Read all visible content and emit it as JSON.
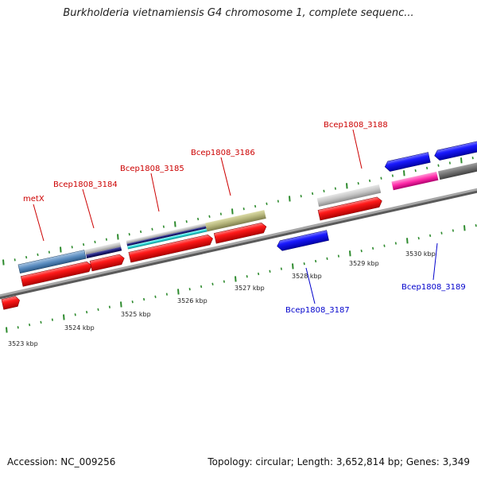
{
  "title": "Burkholderia vietnamiensis G4 chromosome 1, complete sequenc...",
  "colors": {
    "background": "#ffffff",
    "backbone": "#8a8a8a",
    "tick": "#2e8b2e",
    "label_forward": "#cc0000",
    "label_reverse": "#0000cc"
  },
  "scale": {
    "unit": "kbp",
    "labels": [
      {
        "text": "3523 kbp"
      },
      {
        "text": "3524 kbp"
      },
      {
        "text": "3525 kbp"
      },
      {
        "text": "3526 kbp"
      },
      {
        "text": "3527 kbp"
      },
      {
        "text": "3528 kbp"
      },
      {
        "text": "3529 kbp"
      },
      {
        "text": "3530 kbp"
      }
    ]
  },
  "gene_labels": [
    {
      "name": "metX",
      "strand": "forward"
    },
    {
      "name": "Bcep1808_3184",
      "strand": "forward"
    },
    {
      "name": "Bcep1808_3185",
      "strand": "forward"
    },
    {
      "name": "Bcep1808_3186",
      "strand": "forward"
    },
    {
      "name": "Bcep1808_3188",
      "strand": "forward"
    },
    {
      "name": "Bcep1808_3187",
      "strand": "reverse"
    },
    {
      "name": "Bcep1808_3189",
      "strand": "reverse"
    }
  ],
  "footer": {
    "accession": "Accession: NC_009256",
    "summary": "Topology: circular; Length: 3,652,814 bp; Genes: 3,349"
  }
}
